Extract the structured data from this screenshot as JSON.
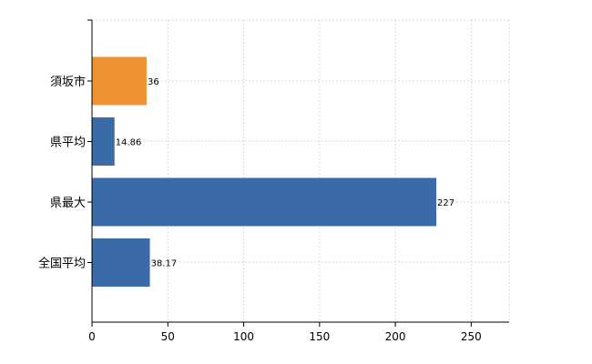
{
  "chart_data": {
    "type": "bar",
    "orientation": "horizontal",
    "categories": [
      "須坂市",
      "県平均",
      "県最大",
      "全国平均"
    ],
    "values": [
      36,
      14.86,
      227,
      38.17
    ],
    "data_labels": [
      "36",
      "14.86",
      "227",
      "38.17"
    ],
    "bar_colors": [
      "#ee9233",
      "#3a6aa8",
      "#3a6aa8",
      "#3a6aa8"
    ],
    "title": "",
    "xlabel": "",
    "ylabel": "",
    "xlim": [
      0,
      275
    ],
    "x_ticks": [
      0,
      50,
      100,
      150,
      200,
      250
    ],
    "grid": true,
    "legend": "none"
  }
}
